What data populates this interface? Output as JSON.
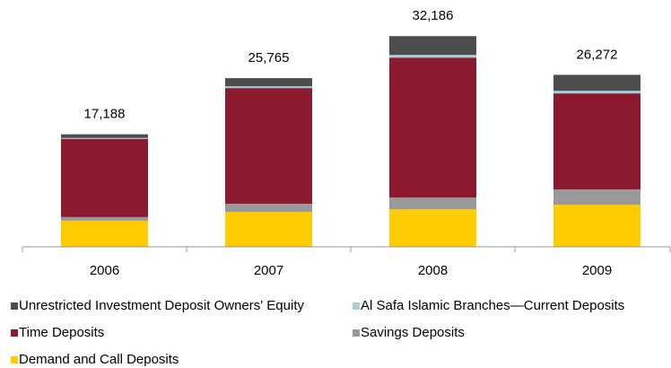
{
  "chart_data": {
    "type": "stacked_bar",
    "categories": [
      "2006",
      "2007",
      "2008",
      "2009"
    ],
    "totals": [
      "17,188",
      "25,765",
      "32,186",
      "26,272"
    ],
    "series": [
      {
        "name": "Demand and Call Deposits",
        "color": "#ffcc00",
        "values": [
          3990,
          5340,
          5750,
          6440
        ]
      },
      {
        "name": "Savings Deposits",
        "color": "#999999",
        "values": [
          550,
          1230,
          1780,
          2330
        ]
      },
      {
        "name": "Time Deposits",
        "color": "#8b1a2f",
        "values": [
          11950,
          17680,
          21370,
          14660
        ]
      },
      {
        "name": "Al Safa Islamic Branches—Current Deposits",
        "color": "#a6cdd8",
        "values": [
          140,
          270,
          410,
          410
        ]
      },
      {
        "name": "Unrestricted Investment Deposit Owners' Equity",
        "color": "#4d4d4d",
        "values": [
          558,
          1245,
          2876,
          2432
        ]
      }
    ],
    "ylim": [
      0,
      37700
    ]
  }
}
